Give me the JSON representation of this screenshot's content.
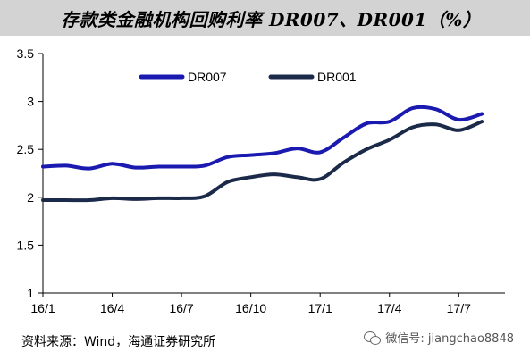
{
  "title": "存款类金融机构回购利率 DR007、DR001（%）",
  "source": "资料来源：Wind，海通证券研究所",
  "watermark": {
    "label": "微信号: jiangchao8848",
    "icon": "wechat-icon"
  },
  "chart_data": {
    "type": "line",
    "title": "存款类金融机构回购利率 DR007、DR001（%）",
    "x_ticks": [
      "16/1",
      "16/4",
      "16/7",
      "16/10",
      "17/1",
      "17/4",
      "17/7"
    ],
    "y_ticks": [
      "1",
      "1.5",
      "2",
      "2.5",
      "3",
      "3.5"
    ],
    "ylim": [
      1,
      3.5
    ],
    "xlim": [
      0,
      20
    ],
    "grid": false,
    "legend": "top-left",
    "series": [
      {
        "name": "DR007",
        "color": "#1a1ab0",
        "points": [
          [
            0,
            2.32
          ],
          [
            1,
            2.33
          ],
          [
            2,
            2.3
          ],
          [
            3,
            2.35
          ],
          [
            4,
            2.31
          ],
          [
            5,
            2.32
          ],
          [
            6,
            2.32
          ],
          [
            7,
            2.33
          ],
          [
            8,
            2.42
          ],
          [
            9,
            2.44
          ],
          [
            10,
            2.46
          ],
          [
            11,
            2.51
          ],
          [
            12,
            2.47
          ],
          [
            13,
            2.62
          ],
          [
            14,
            2.77
          ],
          [
            15,
            2.79
          ],
          [
            16,
            2.93
          ],
          [
            17,
            2.92
          ],
          [
            18,
            2.81
          ],
          [
            19,
            2.87
          ]
        ]
      },
      {
        "name": "DR001",
        "color": "#1c2a4a",
        "points": [
          [
            0,
            1.97
          ],
          [
            1,
            1.97
          ],
          [
            2,
            1.97
          ],
          [
            3,
            1.99
          ],
          [
            4,
            1.98
          ],
          [
            5,
            1.99
          ],
          [
            6,
            1.99
          ],
          [
            7,
            2.01
          ],
          [
            8,
            2.16
          ],
          [
            9,
            2.21
          ],
          [
            10,
            2.24
          ],
          [
            11,
            2.21
          ],
          [
            12,
            2.19
          ],
          [
            13,
            2.36
          ],
          [
            14,
            2.5
          ],
          [
            15,
            2.6
          ],
          [
            16,
            2.73
          ],
          [
            17,
            2.76
          ],
          [
            18,
            2.7
          ],
          [
            19,
            2.79
          ]
        ]
      }
    ]
  }
}
